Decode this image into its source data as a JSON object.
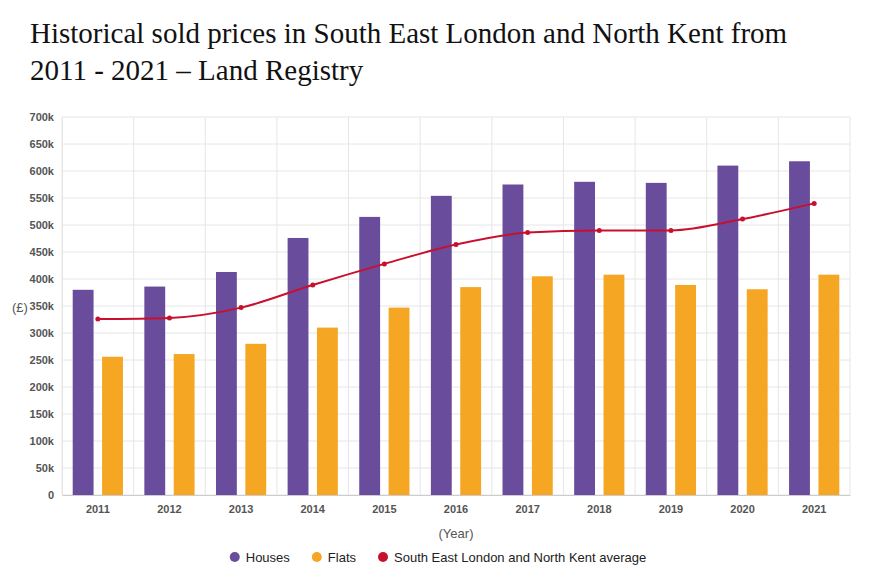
{
  "chart_data": {
    "type": "bar",
    "title": "Historical sold prices in South East London and North Kent from 2011 - 2021 – Land Registry",
    "x_label": "(Year)",
    "y_label": "(£)",
    "categories": [
      "2011",
      "2012",
      "2013",
      "2014",
      "2015",
      "2016",
      "2017",
      "2018",
      "2019",
      "2020",
      "2021"
    ],
    "series": [
      {
        "name": "Houses",
        "type": "bar",
        "color": "#6a4c9c",
        "values": [
          380000,
          386000,
          413000,
          476000,
          515000,
          554000,
          575000,
          580000,
          578000,
          610000,
          618000
        ]
      },
      {
        "name": "Flats",
        "type": "bar",
        "color": "#f5a623",
        "values": [
          256000,
          261000,
          280000,
          310000,
          347000,
          385000,
          405000,
          408000,
          389000,
          381000,
          408000
        ]
      },
      {
        "name": "South East London and North Kent average",
        "type": "line",
        "color": "#c8102e",
        "marker": "circle",
        "values": [
          326000,
          328000,
          347000,
          389000,
          428000,
          464000,
          486000,
          490000,
          490000,
          511000,
          540000
        ]
      }
    ],
    "ylim": [
      0,
      700000
    ],
    "yticks": [
      {
        "value": 0,
        "label": "0"
      },
      {
        "value": 50000,
        "label": "50k"
      },
      {
        "value": 100000,
        "label": "100k"
      },
      {
        "value": 150000,
        "label": "150k"
      },
      {
        "value": 200000,
        "label": "200k"
      },
      {
        "value": 250000,
        "label": "250k"
      },
      {
        "value": 300000,
        "label": "300k"
      },
      {
        "value": 350000,
        "label": "350k"
      },
      {
        "value": 400000,
        "label": "400k"
      },
      {
        "value": 450000,
        "label": "450k"
      },
      {
        "value": 500000,
        "label": "500k"
      },
      {
        "value": 550000,
        "label": "550k"
      },
      {
        "value": 600000,
        "label": "600k"
      },
      {
        "value": 650000,
        "label": "650k"
      },
      {
        "value": 700000,
        "label": "700k"
      }
    ],
    "grid": true,
    "legend": "bottom"
  }
}
